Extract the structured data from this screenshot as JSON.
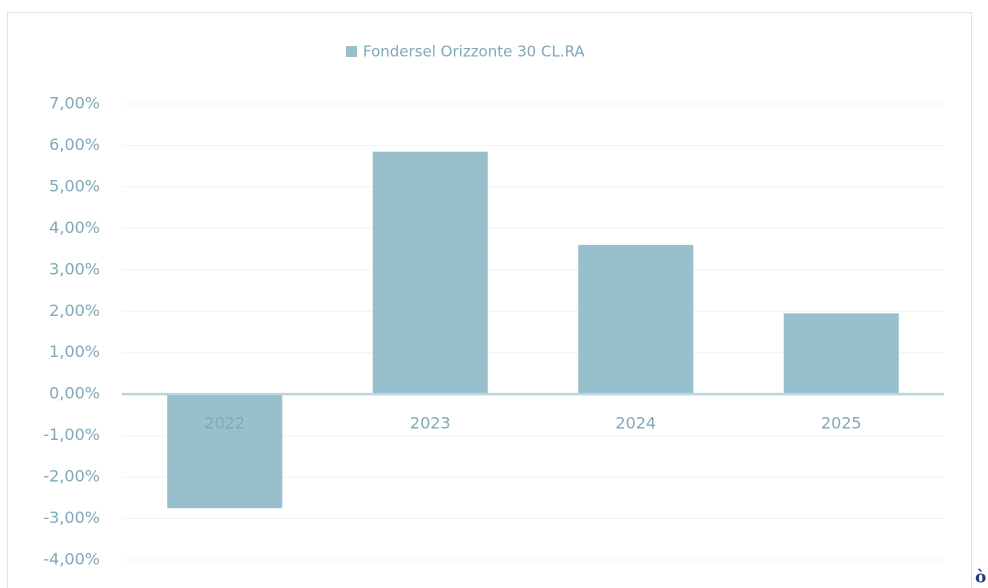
{
  "chart_data": {
    "type": "bar",
    "legend": "Fondersel Orizzonte 30 CL.RA",
    "categories": [
      "2022",
      "2023",
      "2024",
      "2025"
    ],
    "values": [
      -2.75,
      5.85,
      3.6,
      1.95
    ],
    "color": "#97c0cc",
    "ylim": [
      -4,
      7
    ],
    "yticks": [
      {
        "value": 7,
        "label": "7,00%"
      },
      {
        "value": 6,
        "label": "6,00%"
      },
      {
        "value": 5,
        "label": "5,00%"
      },
      {
        "value": 4,
        "label": "4,00%"
      },
      {
        "value": 3,
        "label": "3,00%"
      },
      {
        "value": 2,
        "label": "2,00%"
      },
      {
        "value": 1,
        "label": "1,00%"
      },
      {
        "value": 0,
        "label": "0,00%"
      },
      {
        "value": -1,
        "label": "-1,00%"
      },
      {
        "value": -2,
        "label": "-2,00%"
      },
      {
        "value": -3,
        "label": "-3,00%"
      },
      {
        "value": -4,
        "label": "-4,00%"
      }
    ],
    "grid": true,
    "legend_position": "top",
    "annotation": "ò"
  }
}
